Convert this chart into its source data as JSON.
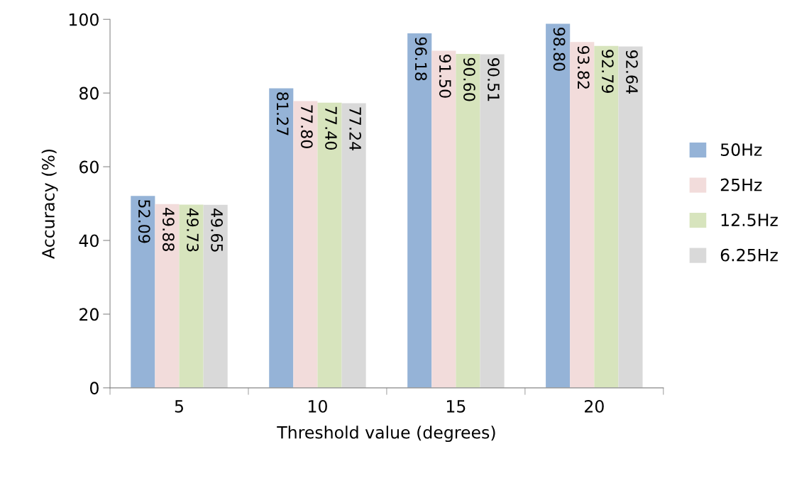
{
  "chart_data": {
    "type": "bar",
    "xlabel": "Threshold value (degrees)",
    "ylabel": "Accuracy (%)",
    "categories": [
      "5",
      "10",
      "15",
      "20"
    ],
    "series": [
      {
        "name": "50Hz",
        "color": "#95b3d7",
        "values": [
          52.09,
          81.27,
          96.18,
          98.8
        ],
        "value_labels": [
          "52.09",
          "81.27",
          "96.18",
          "98.80"
        ]
      },
      {
        "name": "25Hz",
        "color": "#f2dcdb",
        "values": [
          49.88,
          77.8,
          91.5,
          93.82
        ],
        "value_labels": [
          "49.88",
          "77.80",
          "91.50",
          "93.82"
        ]
      },
      {
        "name": "12.5Hz",
        "color": "#d7e4bd",
        "values": [
          49.73,
          77.4,
          90.6,
          92.79
        ],
        "value_labels": [
          "49.73",
          "77.40",
          "90.60",
          "92.79"
        ]
      },
      {
        "name": "6.25Hz",
        "color": "#d9d9d9",
        "values": [
          49.65,
          77.24,
          90.51,
          92.64
        ],
        "value_labels": [
          "49.65",
          "77.24",
          "90.51",
          "92.64"
        ]
      }
    ],
    "ylim": [
      0,
      100
    ],
    "yticks": [
      0,
      20,
      40,
      60,
      80,
      100
    ],
    "grid": false,
    "legend": "right"
  }
}
